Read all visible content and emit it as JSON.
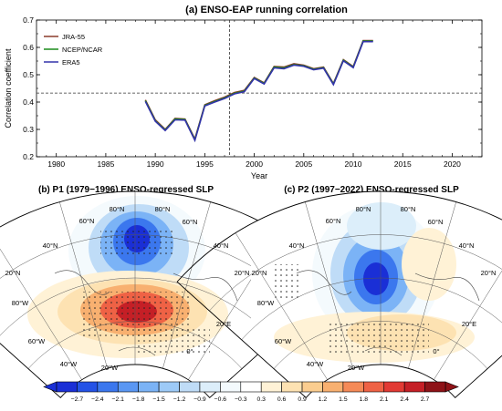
{
  "panel_a": {
    "title": "(a) ENSO-EAP running correlation",
    "xlabel": "Year",
    "ylabel": "Correlation coefficient",
    "x_ticks": [
      "1980",
      "1985",
      "1990",
      "1995",
      "2000",
      "2005",
      "2010",
      "2015",
      "2020"
    ],
    "y_ticks": [
      "0.2",
      "0.3",
      "0.4",
      "0.5",
      "0.6",
      "0.7"
    ],
    "legend": [
      "JRA-55",
      "NCEP/NCAR",
      "ERA5"
    ]
  },
  "panel_b": {
    "title": "(b) P1 (1979−1996) ENSO-regressed SLP",
    "lat_labels": [
      "40°N",
      "60°N",
      "80°N",
      "80°N",
      "60°N",
      "40°N",
      "20°N",
      "20°N"
    ],
    "lon_labels": [
      "80°W",
      "60°W",
      "40°W",
      "20°W",
      "0°",
      "20°E"
    ]
  },
  "panel_c": {
    "title": "(c) P2 (1997−2022) ENSO-regressed SLP",
    "lat_labels": [
      "40°N",
      "60°N",
      "80°N",
      "80°N",
      "60°N",
      "40°N",
      "20°N",
      "20°N"
    ],
    "lon_labels": [
      "80°W",
      "60°W",
      "40°W",
      "20°W",
      "0°",
      "20°E"
    ]
  },
  "colorbar": {
    "labels": [
      "−2.7",
      "−2.4",
      "−2.1",
      "−1.8",
      "−1.5",
      "−1.2",
      "−0.9",
      "−0.6",
      "−0.3",
      "0.3",
      "0.6",
      "0.9",
      "1.2",
      "1.5",
      "1.8",
      "2.1",
      "2.4",
      "2.7"
    ],
    "colors": [
      "#1a2fd6",
      "#2452e6",
      "#3b77ee",
      "#5a97f3",
      "#7bb3f6",
      "#9dcaf7",
      "#bfdcf7",
      "#dceefa",
      "#f4fafd",
      "#ffffff",
      "#fff2d6",
      "#fde2b2",
      "#fbcd8f",
      "#f8b070",
      "#f58a57",
      "#ef6245",
      "#e23a34",
      "#c51f26",
      "#8e1217"
    ]
  },
  "chart_data": {
    "type": "line",
    "title": "(a) ENSO-EAP running correlation",
    "xlabel": "Year",
    "ylabel": "Correlation coefficient",
    "xlim": [
      1978,
      2023
    ],
    "ylim": [
      0.2,
      0.7
    ],
    "vline": 1997.5,
    "hline": 0.433,
    "legend_position": "top-left",
    "series": [
      {
        "name": "JRA-55",
        "color": "#8b3a2b",
        "x": [
          1989,
          1990,
          1991,
          1992,
          1993,
          1994,
          1995,
          1996,
          1997,
          1998,
          1999,
          2000,
          2001,
          2002,
          2003,
          2004,
          2005,
          2006,
          2007,
          2008,
          2009,
          2010,
          2011,
          2012
        ],
        "values": [
          0.408,
          0.335,
          0.3,
          0.34,
          0.338,
          0.265,
          0.39,
          0.405,
          0.418,
          0.435,
          0.443,
          0.49,
          0.47,
          0.53,
          0.528,
          0.54,
          0.535,
          0.522,
          0.528,
          0.468,
          0.555,
          0.53,
          0.625,
          0.625
        ]
      },
      {
        "name": "NCEP/NCAR",
        "color": "#1a8a1a",
        "x": [
          1989,
          1990,
          1991,
          1992,
          1993,
          1994,
          1995,
          1996,
          1997,
          1998,
          1999,
          2000,
          2001,
          2002,
          2003,
          2004,
          2005,
          2006,
          2007,
          2008,
          2009,
          2010,
          2011,
          2012
        ],
        "values": [
          0.405,
          0.332,
          0.298,
          0.338,
          0.336,
          0.262,
          0.388,
          0.402,
          0.415,
          0.432,
          0.44,
          0.488,
          0.468,
          0.528,
          0.525,
          0.537,
          0.533,
          0.52,
          0.526,
          0.466,
          0.553,
          0.528,
          0.623,
          0.623
        ]
      },
      {
        "name": "ERA5",
        "color": "#3333aa",
        "x": [
          1989,
          1990,
          1991,
          1992,
          1993,
          1994,
          1995,
          1996,
          1997,
          1998,
          1999,
          2000,
          2001,
          2002,
          2003,
          2004,
          2005,
          2006,
          2007,
          2008,
          2009,
          2010,
          2011,
          2012
        ],
        "values": [
          0.402,
          0.33,
          0.296,
          0.335,
          0.334,
          0.26,
          0.386,
          0.4,
          0.413,
          0.43,
          0.438,
          0.486,
          0.466,
          0.525,
          0.522,
          0.535,
          0.531,
          0.518,
          0.524,
          0.464,
          0.551,
          0.526,
          0.621,
          0.621
        ]
      }
    ]
  }
}
